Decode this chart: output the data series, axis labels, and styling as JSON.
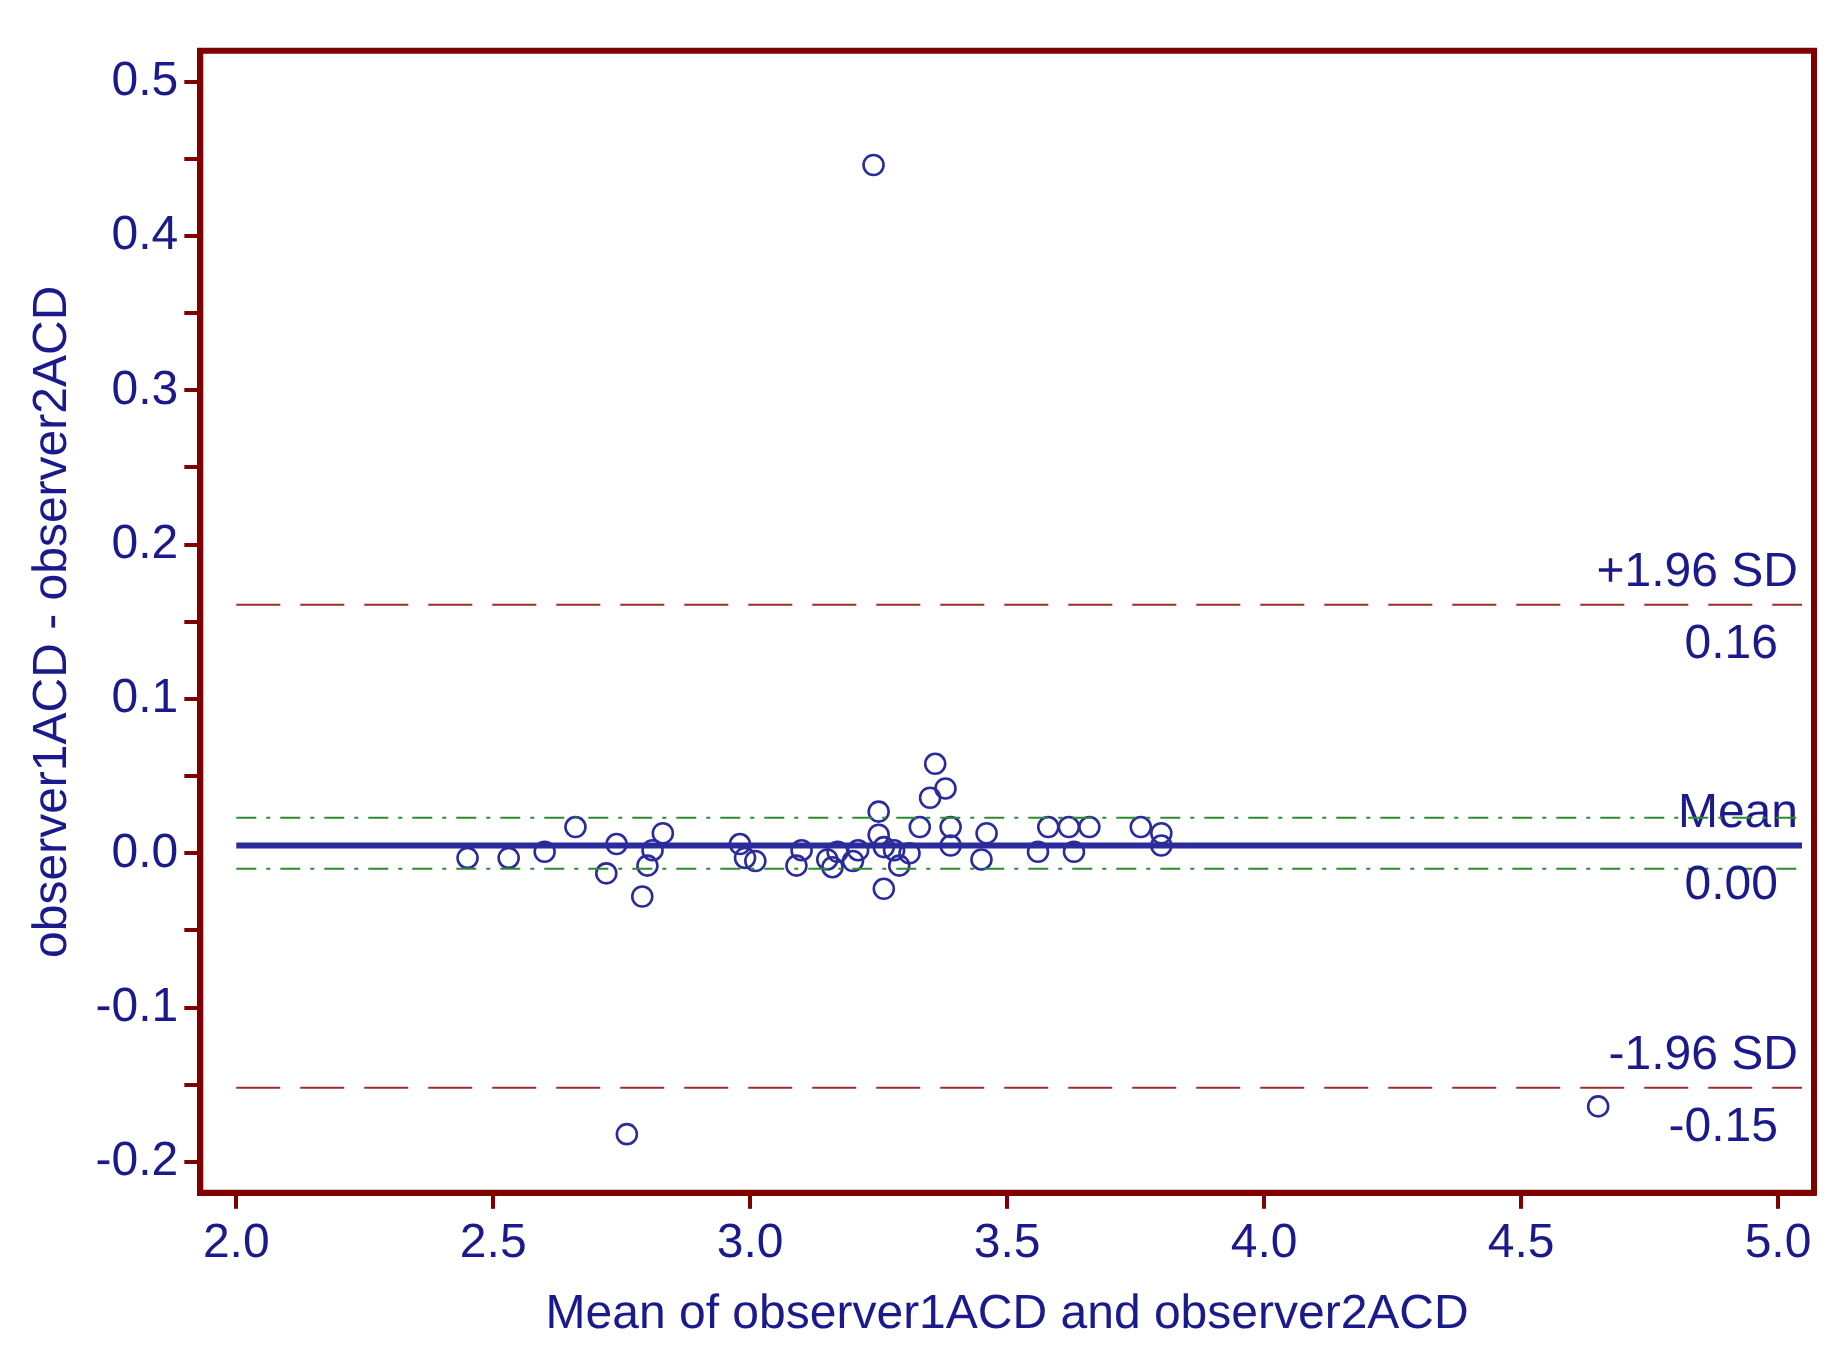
{
  "chart_data": {
    "type": "scatter",
    "xlabel": "Mean of observer1ACD and observer2ACD",
    "ylabel": "observer1ACD - observer2ACD",
    "xlim": [
      1.93,
      5.07
    ],
    "xticks": [
      {
        "value": 2,
        "label": "2.0"
      },
      {
        "value": 2.5,
        "label": "2.5"
      },
      {
        "value": 3,
        "label": "3.0"
      },
      {
        "value": 3.5,
        "label": "3.5"
      },
      {
        "value": 4,
        "label": "4.0"
      },
      {
        "value": 4.5,
        "label": "4.5"
      },
      {
        "value": 5,
        "label": "5.0"
      }
    ],
    "ylim": [
      -0.22,
      0.52
    ],
    "yticks": [
      {
        "value": -0.2,
        "label": "-0.2"
      },
      {
        "value": -0.15,
        "label": null
      },
      {
        "value": -0.1,
        "label": "-0.1"
      },
      {
        "value": -0.05,
        "label": null
      },
      {
        "value": 0,
        "label": "0.0"
      },
      {
        "value": 0.05,
        "label": null
      },
      {
        "value": 0.1,
        "label": "0.1"
      },
      {
        "value": 0.15,
        "label": null
      },
      {
        "value": 0.2,
        "label": "0.2"
      },
      {
        "value": 0.25,
        "label": null
      },
      {
        "value": 0.3,
        "label": "0.3"
      },
      {
        "value": 0.35,
        "label": null
      },
      {
        "value": 0.4,
        "label": "0.4"
      },
      {
        "value": 0.45,
        "label": null
      },
      {
        "value": 0.5,
        "label": "0.5"
      }
    ],
    "grid": false,
    "legend": false,
    "marker": "circle",
    "series": [
      {
        "color": "#2b2b9c",
        "x": [
          3.24,
          2.45,
          2.53,
          2.6,
          2.66,
          2.72,
          2.74,
          2.79,
          2.8,
          2.81,
          2.83,
          2.76,
          2.98,
          2.99,
          3.01,
          3.09,
          3.1,
          3.15,
          3.16,
          3.17,
          3.2,
          3.21,
          3.25,
          3.25,
          3.26,
          3.26,
          3.28,
          3.29,
          3.31,
          3.33,
          3.35,
          3.36,
          3.38,
          3.39,
          3.39,
          3.45,
          3.46,
          3.56,
          3.58,
          3.62,
          3.63,
          3.66,
          3.76,
          3.8,
          3.8,
          4.65
        ],
        "values": [
          0.446,
          -0.003,
          -0.003,
          0.001,
          0.017,
          -0.013,
          0.006,
          -0.028,
          -0.008,
          0.002,
          0.013,
          -0.182,
          0.006,
          -0.003,
          -0.005,
          -0.008,
          0.002,
          -0.004,
          -0.009,
          0.001,
          -0.005,
          0.002,
          0.027,
          0.012,
          -0.023,
          0.004,
          0.002,
          -0.008,
          0,
          0.017,
          0.036,
          0.058,
          0.042,
          0.017,
          0.005,
          -0.004,
          0.013,
          0.001,
          0.017,
          0.017,
          0.001,
          0.017,
          0.017,
          0.005,
          0.013,
          -0.164
        ]
      }
    ],
    "ref_lines": [
      {
        "axis": "y",
        "value": 0.161,
        "label": "+1.96 SD",
        "color": "#9b2d2d",
        "line_style": "dashed"
      },
      {
        "axis": "y",
        "value": 0.005,
        "label": "Mean",
        "color": "#2b2b9c",
        "line_style": "solid"
      },
      {
        "axis": "y",
        "value": -0.152,
        "label": "-1.96 SD",
        "color": "#9b2d2d",
        "line_style": "dashed"
      },
      {
        "axis": "y",
        "value": 0.023,
        "color": "#2e8b2e",
        "line_style": "dotted"
      },
      {
        "axis": "y",
        "value": -0.01,
        "color": "#2e8b2e",
        "line_style": "dotted"
      }
    ],
    "annotations": [
      {
        "text": "0.16",
        "y": 0.161
      },
      {
        "text": "0.00",
        "y": 0.005
      },
      {
        "text": "-0.15",
        "y": -0.152
      }
    ]
  }
}
